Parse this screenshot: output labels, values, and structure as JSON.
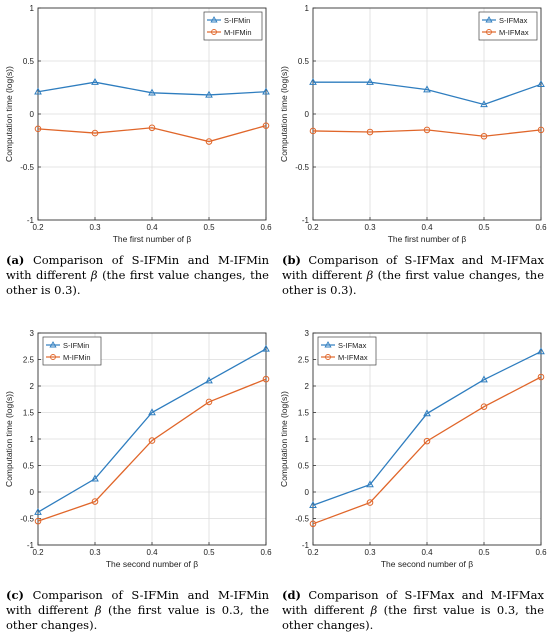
{
  "series_colors": [
    "#2e7dbf",
    "#e0662a"
  ],
  "chart_data": [
    {
      "type": "line",
      "x": [
        0.2,
        0.3,
        0.4,
        0.5,
        0.6
      ],
      "xticks": [
        "0.2",
        "0.3",
        "0.4",
        "0.5",
        "0.6"
      ],
      "yticks": [
        "-1",
        "-0.5",
        "0",
        "0.5",
        "1"
      ],
      "xlim": [
        0.2,
        0.6
      ],
      "ylim": [
        -1,
        1
      ],
      "xlabel": "The first number of β",
      "ylabel": "Computation time (log(s))",
      "grid": true,
      "legend_position": "top-right",
      "series": [
        {
          "name": "S-IFMin",
          "values": [
            0.21,
            0.3,
            0.2,
            0.18,
            0.21
          ]
        },
        {
          "name": "M-IFMin",
          "values": [
            -0.14,
            -0.18,
            -0.13,
            -0.26,
            -0.11
          ]
        }
      ],
      "caption": {
        "letter": "(a)",
        "pre": "Comparison of S-IFMin and M-IFMin with different ",
        "sym": "β",
        "post": " (the first value changes, the other is 0.3)."
      }
    },
    {
      "type": "line",
      "x": [
        0.2,
        0.3,
        0.4,
        0.5,
        0.6
      ],
      "xticks": [
        "0.2",
        "0.3",
        "0.4",
        "0.5",
        "0.6"
      ],
      "yticks": [
        "-1",
        "-0.5",
        "0",
        "0.5",
        "1"
      ],
      "xlim": [
        0.2,
        0.6
      ],
      "ylim": [
        -1,
        1
      ],
      "xlabel": "The first number of β",
      "ylabel": "Computation time (log(s))",
      "grid": true,
      "legend_position": "top-right",
      "series": [
        {
          "name": "S-IFMax",
          "values": [
            0.3,
            0.3,
            0.23,
            0.09,
            0.28
          ]
        },
        {
          "name": "M-IFMax",
          "values": [
            -0.16,
            -0.17,
            -0.15,
            -0.21,
            -0.15
          ]
        }
      ],
      "caption": {
        "letter": "(b)",
        "pre": "Comparison of S-IFMax and M-IFMax with different ",
        "sym": "β",
        "post": " (the first value changes, the other is 0.3)."
      }
    },
    {
      "type": "line",
      "x": [
        0.2,
        0.3,
        0.4,
        0.5,
        0.6
      ],
      "xticks": [
        "0.2",
        "0.3",
        "0.4",
        "0.5",
        "0.6"
      ],
      "yticks": [
        "-1",
        "-0.5",
        "0",
        "0.5",
        "1",
        "1.5",
        "2",
        "2.5",
        "3"
      ],
      "xlim": [
        0.2,
        0.6
      ],
      "ylim": [
        -1,
        3
      ],
      "xlabel": "The second number of β",
      "ylabel": "Computation time (log(s))",
      "grid": true,
      "legend_position": "top-left",
      "series": [
        {
          "name": "S-IFMin",
          "values": [
            -0.38,
            0.25,
            1.5,
            2.1,
            2.7
          ]
        },
        {
          "name": "M-IFMin",
          "values": [
            -0.55,
            -0.18,
            0.97,
            1.7,
            2.13
          ]
        }
      ],
      "caption": {
        "letter": "(c)",
        "pre": "Comparison of S-IFMin and M-IFMin with different ",
        "sym": "β",
        "post": " (the first value is 0.3, the other changes)."
      }
    },
    {
      "type": "line",
      "x": [
        0.2,
        0.3,
        0.4,
        0.5,
        0.6
      ],
      "xticks": [
        "0.2",
        "0.3",
        "0.4",
        "0.5",
        "0.6"
      ],
      "yticks": [
        "-1",
        "-0.5",
        "0",
        "0.5",
        "1",
        "1.5",
        "2",
        "2.5",
        "3"
      ],
      "xlim": [
        0.2,
        0.6
      ],
      "ylim": [
        -1,
        3
      ],
      "xlabel": "The second number of β",
      "ylabel": "Computation time (log(s))",
      "grid": true,
      "legend_position": "top-left",
      "series": [
        {
          "name": "S-IFMax",
          "values": [
            -0.25,
            0.14,
            1.48,
            2.12,
            2.65
          ]
        },
        {
          "name": "M-IFMax",
          "values": [
            -0.6,
            -0.2,
            0.96,
            1.61,
            2.17
          ]
        }
      ],
      "caption": {
        "letter": "(d)",
        "pre": "Comparison of S-IFMax and M-IFMax with different ",
        "sym": "β",
        "post": " (the first value is 0.3, the other changes)."
      }
    }
  ]
}
